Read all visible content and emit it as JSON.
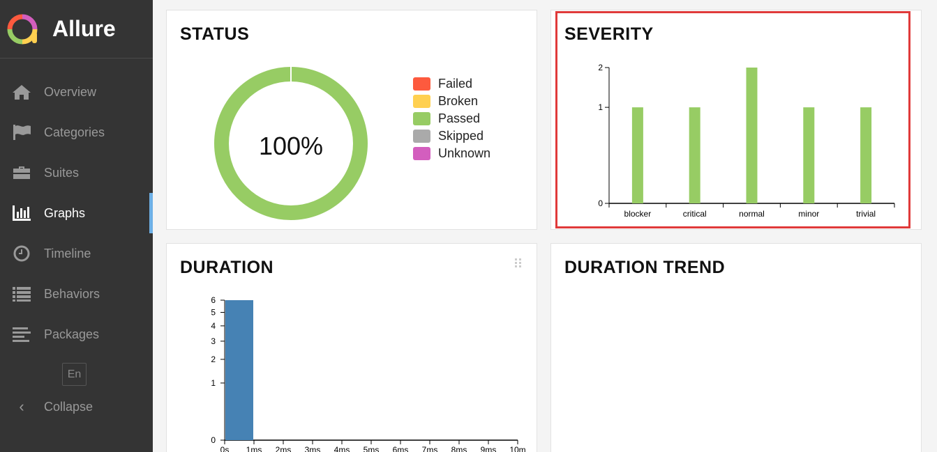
{
  "sidebar": {
    "brand": "Allure",
    "items": [
      {
        "label": "Overview",
        "icon": "home-icon"
      },
      {
        "label": "Categories",
        "icon": "flag-icon"
      },
      {
        "label": "Suites",
        "icon": "briefcase-icon"
      },
      {
        "label": "Graphs",
        "icon": "bar-chart-icon",
        "active": true
      },
      {
        "label": "Timeline",
        "icon": "clock-icon"
      },
      {
        "label": "Behaviors",
        "icon": "list-icon"
      },
      {
        "label": "Packages",
        "icon": "align-left-icon"
      }
    ],
    "language": "En",
    "collapse_label": "Collapse"
  },
  "status": {
    "title": "STATUS",
    "percent_label": "100%",
    "legend": [
      {
        "label": "Failed",
        "color": "#fd5a3e"
      },
      {
        "label": "Broken",
        "color": "#ffd050"
      },
      {
        "label": "Passed",
        "color": "#97cc64"
      },
      {
        "label": "Skipped",
        "color": "#aaaaaa"
      },
      {
        "label": "Unknown",
        "color": "#d35ebe"
      }
    ]
  },
  "severity": {
    "title": "SEVERITY"
  },
  "duration": {
    "title": "DURATION"
  },
  "duration_trend": {
    "title": "DURATION TREND"
  },
  "chart_data": [
    {
      "id": "status",
      "type": "pie",
      "categories": [
        "Failed",
        "Broken",
        "Passed",
        "Skipped",
        "Unknown"
      ],
      "values": [
        0,
        0,
        6,
        0,
        0
      ],
      "colors": [
        "#fd5a3e",
        "#ffd050",
        "#97cc64",
        "#aaaaaa",
        "#d35ebe"
      ],
      "center_label": "100%",
      "legend": "right"
    },
    {
      "id": "severity",
      "type": "bar",
      "categories": [
        "blocker",
        "critical",
        "normal",
        "minor",
        "trivial"
      ],
      "values": [
        1,
        1,
        2,
        1,
        1
      ],
      "color": "#97cc64",
      "y_ticks": [
        0,
        1,
        2
      ],
      "ylim": [
        0,
        2
      ],
      "yscale": "sqrt"
    },
    {
      "id": "duration",
      "type": "bar",
      "x_ticks": [
        "0s",
        "1ms",
        "2ms",
        "3ms",
        "4ms",
        "5ms",
        "6ms",
        "7ms",
        "8ms",
        "9ms",
        "10m"
      ],
      "bins": [
        {
          "from": "0s",
          "to": "1ms",
          "count": 6
        }
      ],
      "color": "#4682b4",
      "y_ticks": [
        0,
        1,
        2,
        3,
        4,
        5,
        6
      ],
      "ylim": [
        0,
        6
      ],
      "yscale": "sqrt"
    }
  ]
}
